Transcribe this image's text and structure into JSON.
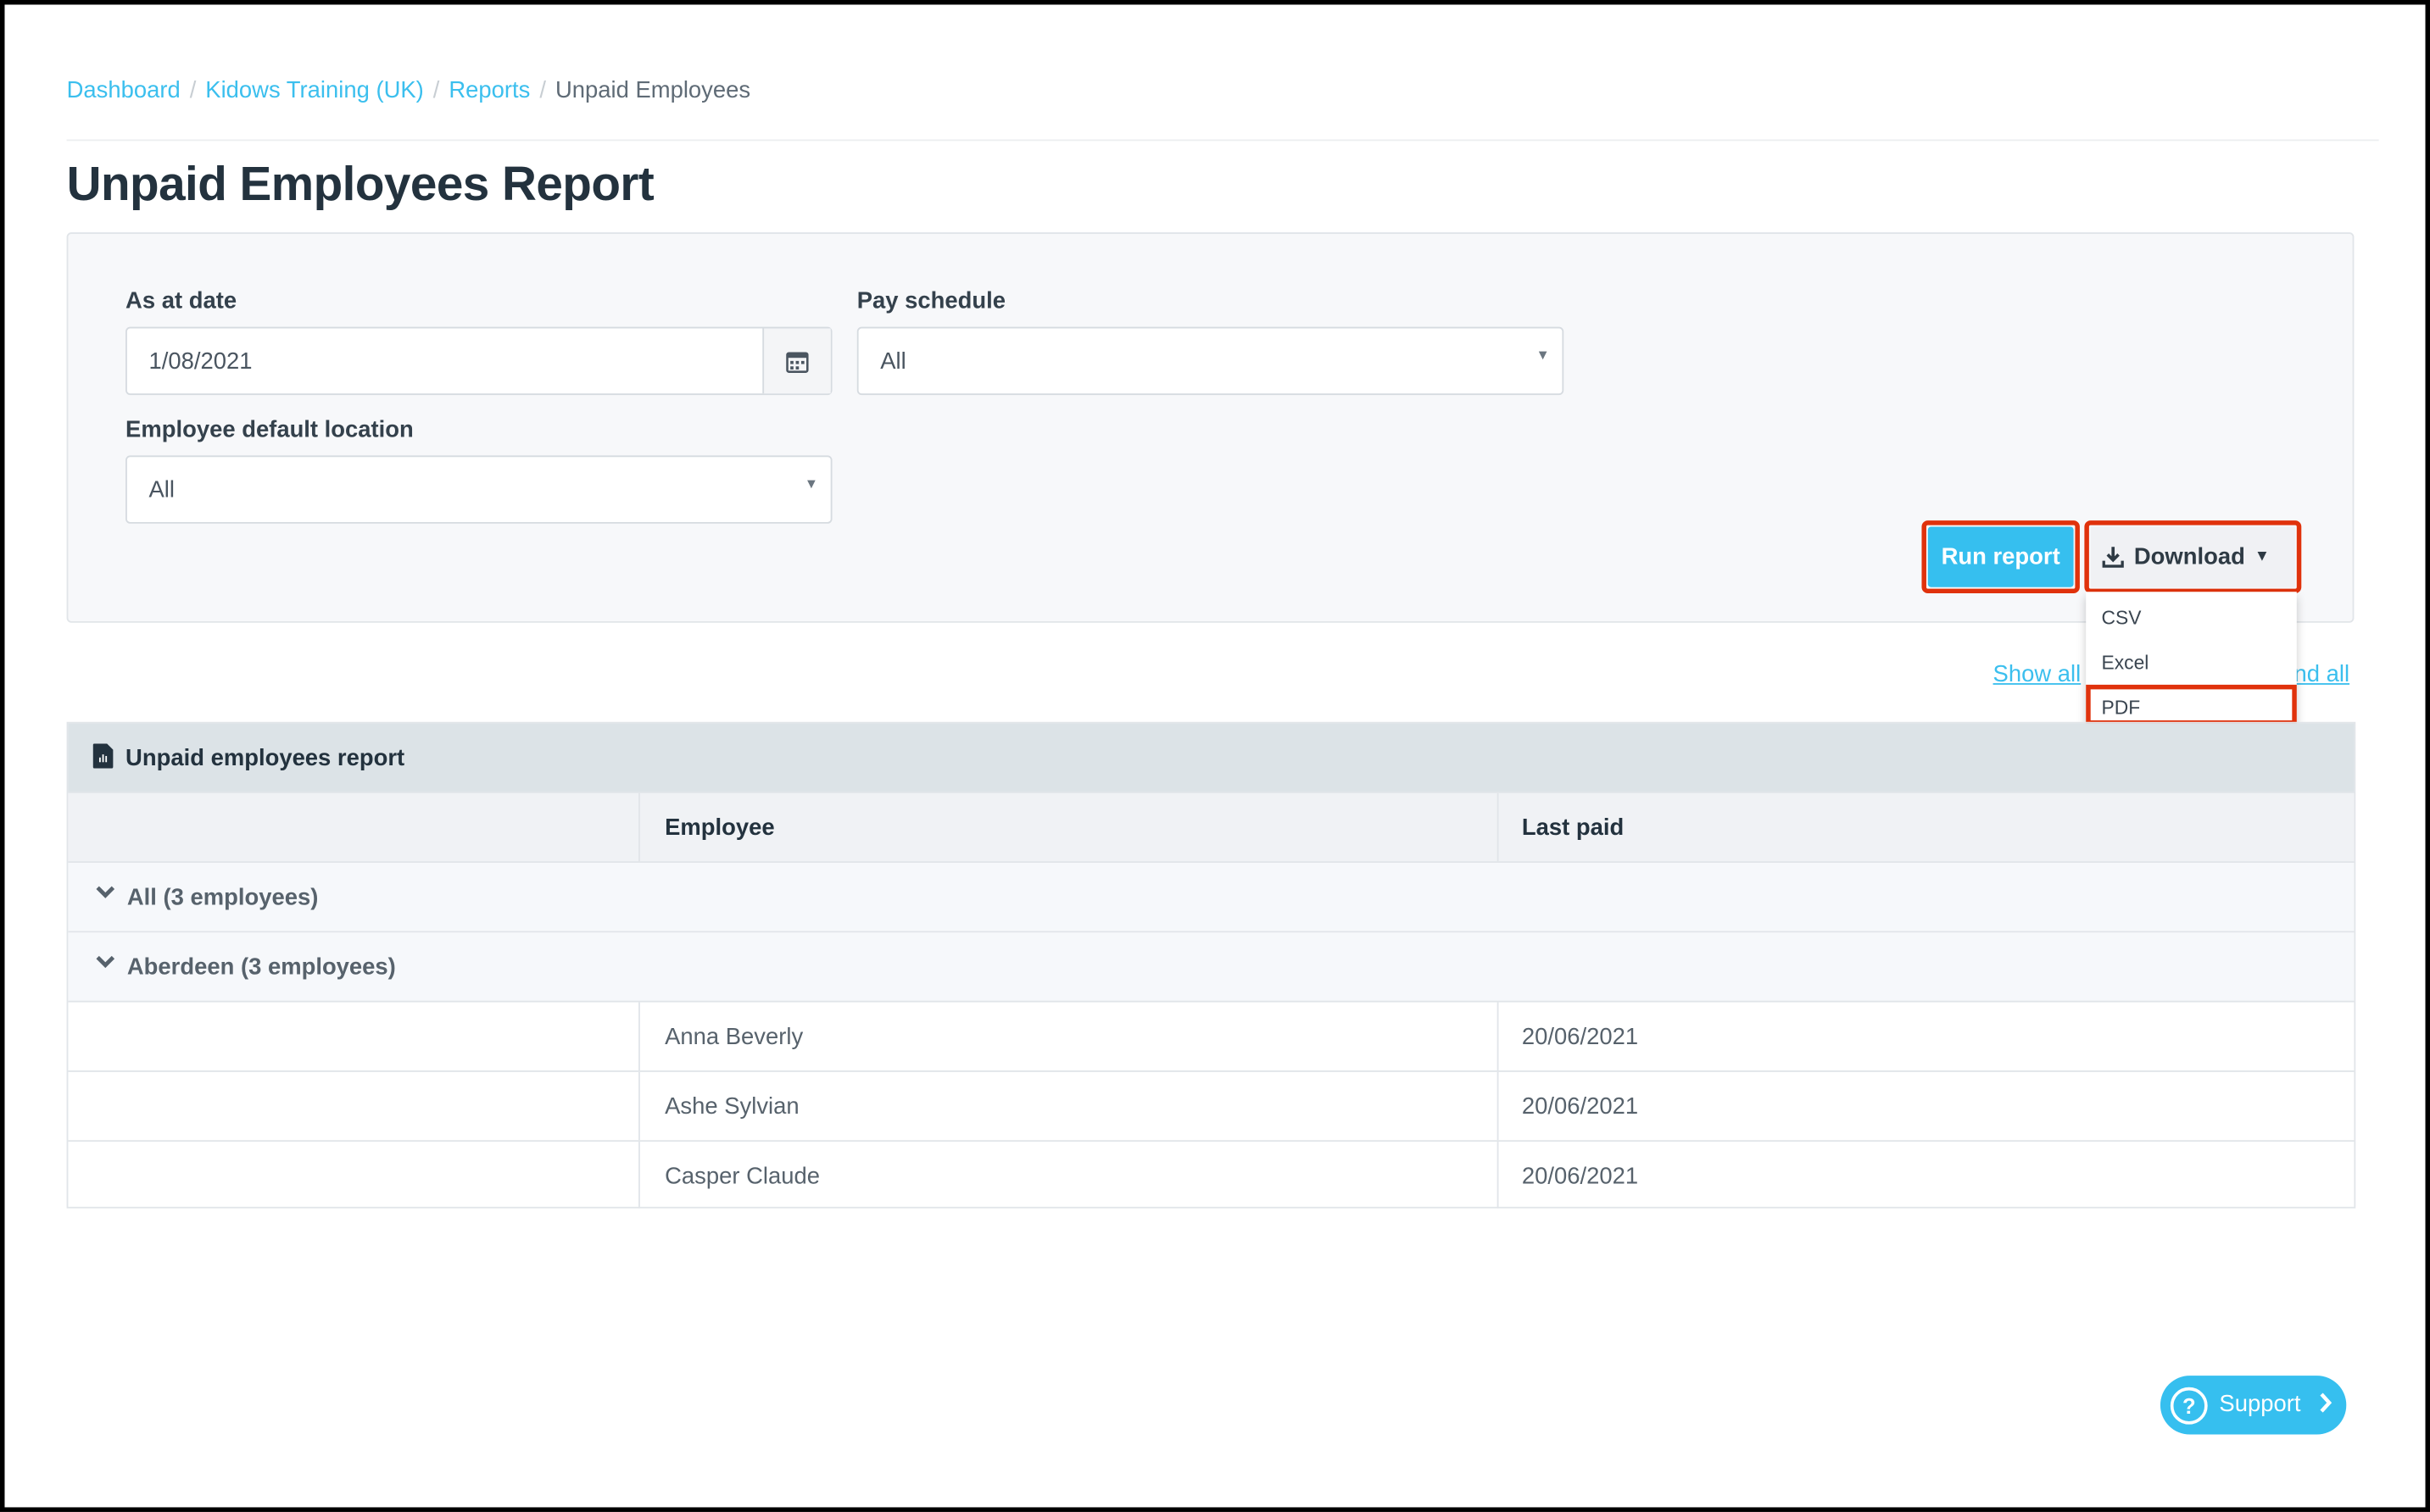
{
  "breadcrumb": [
    {
      "label": "Dashboard",
      "link": true
    },
    {
      "label": "Kidows Training (UK)",
      "link": true
    },
    {
      "label": "Reports",
      "link": true
    },
    {
      "label": "Unpaid Employees",
      "link": false
    }
  ],
  "page_title": "Unpaid Employees Report",
  "filters": {
    "as_at_date": {
      "label": "As at date",
      "value": "1/08/2021",
      "icon": "calendar-icon"
    },
    "pay_schedule": {
      "label": "Pay schedule",
      "value": "All"
    },
    "location": {
      "label": "Employee default location",
      "value": "All"
    }
  },
  "actions": {
    "run_report": "Run report",
    "download": "Download",
    "download_menu": [
      "CSV",
      "Excel",
      "PDF"
    ],
    "highlight_color": "#e0320c",
    "accent_color": "#36bfef"
  },
  "links": {
    "show_all": "Show all",
    "expand_all": "Expand all"
  },
  "report": {
    "title": "Unpaid employees report",
    "columns": [
      "",
      "Employee",
      "Last paid"
    ],
    "groups": [
      "All (3 employees)",
      "Aberdeen (3 employees)"
    ],
    "rows": [
      {
        "employee": "Anna Beverly",
        "last_paid": "20/06/2021"
      },
      {
        "employee": "Ashe Sylvian",
        "last_paid": "20/06/2021"
      },
      {
        "employee": "Casper Claude",
        "last_paid": "20/06/2021"
      }
    ]
  },
  "support": {
    "label": "Support"
  }
}
